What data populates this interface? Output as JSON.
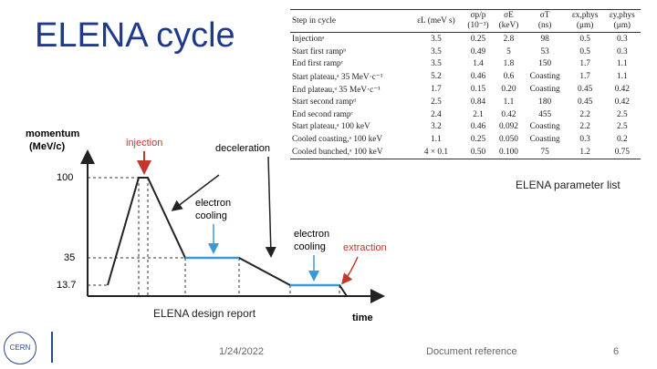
{
  "header": {
    "title": "ELENA cycle"
  },
  "diagram": {
    "y_axis_label": "momentum\n(MeV/c)",
    "x_axis_label": "time",
    "levels": [
      "100",
      "35",
      "13.7"
    ],
    "annotations": {
      "injection": "injection",
      "deceleration": "deceleration",
      "cooling_1": "electron\ncooling",
      "cooling_2": "electron\ncooling",
      "extraction": "extraction"
    },
    "caption": "ELENA design report"
  },
  "table": {
    "header": [
      "Step in cycle",
      "εL (meV s)",
      "σp/p\n(10⁻³)",
      "σE\n(keV)",
      "σT\n(ns)",
      "εx,phys\n(μm)",
      "εy,phys\n(μm)"
    ],
    "rows": [
      [
        "Injectionᵃ",
        "3.5",
        "0.25",
        "2.8",
        "98",
        "0.5",
        "0.3"
      ],
      [
        "Start first rampᵇ",
        "3.5",
        "0.49",
        "5",
        "53",
        "0.5",
        "0.3"
      ],
      [
        "End first rampᶜ",
        "3.5",
        "1.4",
        "1.8",
        "150",
        "1.7",
        "1.1"
      ],
      [
        "Start plateau,ᵃ 35 MeV·c⁻¹",
        "5.2",
        "0.46",
        "0.6",
        "Coasting",
        "1.7",
        "1.1"
      ],
      [
        "End plateau,ᵃ 35 MeV·c⁻¹",
        "1.7",
        "0.15",
        "0.20",
        "Coasting",
        "0.45",
        "0.42"
      ],
      [
        "Start second rampᵈ",
        "2.5",
        "0.84",
        "1.1",
        "180",
        "0.45",
        "0.42"
      ],
      [
        "End second rampᶜ",
        "2.4",
        "2.1",
        "0.42",
        "455",
        "2.2",
        "2.5"
      ],
      [
        "Start plateau,ᵃ 100 keV",
        "3.2",
        "0.46",
        "0.092",
        "Coasting",
        "2.2",
        "2.5"
      ],
      [
        "Cooled coasting,ᵃ 100 keV",
        "1.1",
        "0.25",
        "0.050",
        "Coasting",
        "0.3",
        "0.2"
      ],
      [
        "Cooled bunched,ᵃ 100 keV",
        "4 × 0.1",
        "0.50",
        "0.100",
        "75",
        "1.2",
        "0.75"
      ]
    ],
    "caption": "ELENA parameter list"
  },
  "footer": {
    "logo": "CERN",
    "date": "1/24/2022",
    "reference": "Document reference",
    "page": "6"
  }
}
